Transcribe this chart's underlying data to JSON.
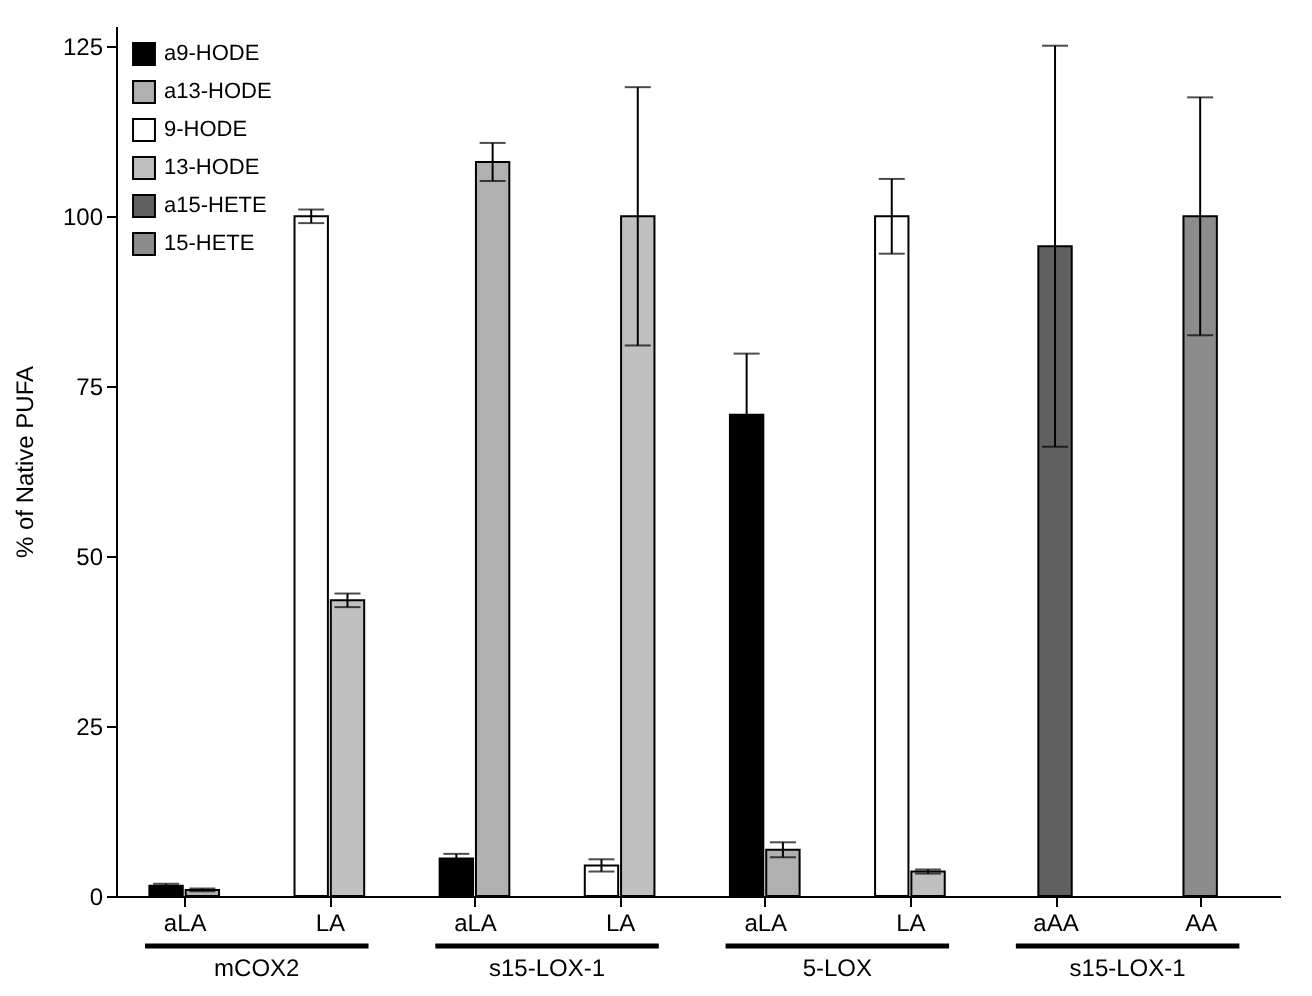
{
  "chart_data": {
    "type": "bar",
    "ylabel": "% of Native PUFA",
    "categories": [
      "aLA",
      "LA",
      "aLA",
      "LA",
      "aLA",
      "LA",
      "aAA",
      "AA"
    ],
    "series": [
      {
        "name": "a9-HODE",
        "color": "#000000",
        "values": [
          1.5,
          null,
          5.5,
          null,
          70.8,
          null,
          null,
          null
        ],
        "errors": [
          0.3,
          null,
          0.7,
          null,
          9,
          null,
          null,
          null
        ]
      },
      {
        "name": "a13-HODE",
        "color": "#b0b0b0",
        "values": [
          0.9,
          null,
          108,
          null,
          6.8,
          null,
          null,
          null
        ],
        "errors": [
          0.2,
          null,
          2.8,
          null,
          1.1,
          null,
          null,
          null
        ]
      },
      {
        "name": "9-HODE",
        "color": "#ffffff",
        "values": [
          null,
          100,
          null,
          4.5,
          null,
          100,
          null,
          null
        ],
        "errors": [
          null,
          1,
          null,
          0.9,
          null,
          5.5,
          null,
          null
        ]
      },
      {
        "name": "13-HODE",
        "color": "#c0c0c0",
        "values": [
          null,
          43.5,
          null,
          100,
          null,
          3.6,
          null,
          null
        ],
        "errors": [
          null,
          1,
          null,
          19,
          null,
          0.3,
          null,
          null
        ]
      },
      {
        "name": "a15-HETE",
        "color": "#606060",
        "values": [
          null,
          null,
          null,
          null,
          null,
          null,
          95.6,
          null
        ],
        "errors": [
          null,
          null,
          null,
          null,
          null,
          null,
          29.5,
          null
        ]
      },
      {
        "name": "15-HETE",
        "color": "#8c8c8c",
        "values": [
          null,
          null,
          null,
          null,
          null,
          null,
          null,
          100
        ],
        "errors": [
          null,
          null,
          null,
          null,
          null,
          null,
          null,
          17.5
        ]
      }
    ],
    "ylim": [
      0,
      128
    ],
    "yticks": [
      0,
      25,
      50,
      75,
      100,
      125
    ],
    "grid": false,
    "legend": "top left",
    "annotations": [
      "mCOX2",
      "s15-LOX-1",
      "5-LOX",
      "s15-LOX-1"
    ]
  }
}
